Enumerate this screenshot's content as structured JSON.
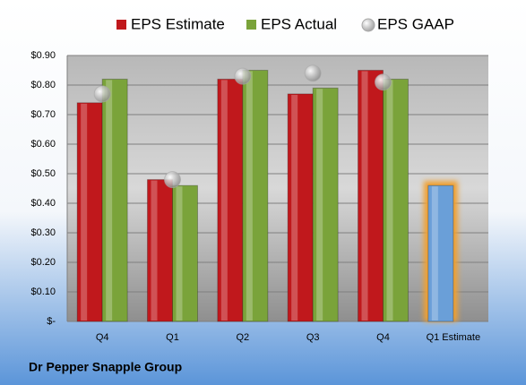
{
  "chart_data": {
    "type": "bar",
    "title": "Dr Pepper Snapple Group",
    "categories": [
      "Q4",
      "Q1",
      "Q2",
      "Q3",
      "Q4",
      "Q1 Estimate"
    ],
    "series": [
      {
        "name": "EPS Estimate",
        "type": "bar",
        "color": "#c0181c",
        "colors": [
          "#c0181c",
          "#c0181c",
          "#c0181c",
          "#c0181c",
          "#c0181c",
          "#6a9fd8"
        ],
        "values": [
          0.74,
          0.48,
          0.82,
          0.77,
          0.85,
          0.46
        ]
      },
      {
        "name": "EPS Actual",
        "type": "bar",
        "color": "#7aa33a",
        "values": [
          0.82,
          0.46,
          0.85,
          0.79,
          0.82,
          null
        ]
      },
      {
        "name": "EPS GAAP",
        "type": "scatter",
        "color": "#a8a8a8",
        "values": [
          0.77,
          0.48,
          0.83,
          0.84,
          0.81,
          null
        ]
      }
    ],
    "ylim": [
      0,
      0.9
    ],
    "yticks": [
      {
        "value": 0,
        "label": "$-"
      },
      {
        "value": 0.1,
        "label": "$0.10"
      },
      {
        "value": 0.2,
        "label": "$0.20"
      },
      {
        "value": 0.3,
        "label": "$0.30"
      },
      {
        "value": 0.4,
        "label": "$0.40"
      },
      {
        "value": 0.5,
        "label": "$0.50"
      },
      {
        "value": 0.6,
        "label": "$0.60"
      },
      {
        "value": 0.7,
        "label": "$0.70"
      },
      {
        "value": 0.8,
        "label": "$0.80"
      },
      {
        "value": 0.9,
        "label": "$0.90"
      }
    ],
    "grid": true,
    "legend": "top"
  }
}
